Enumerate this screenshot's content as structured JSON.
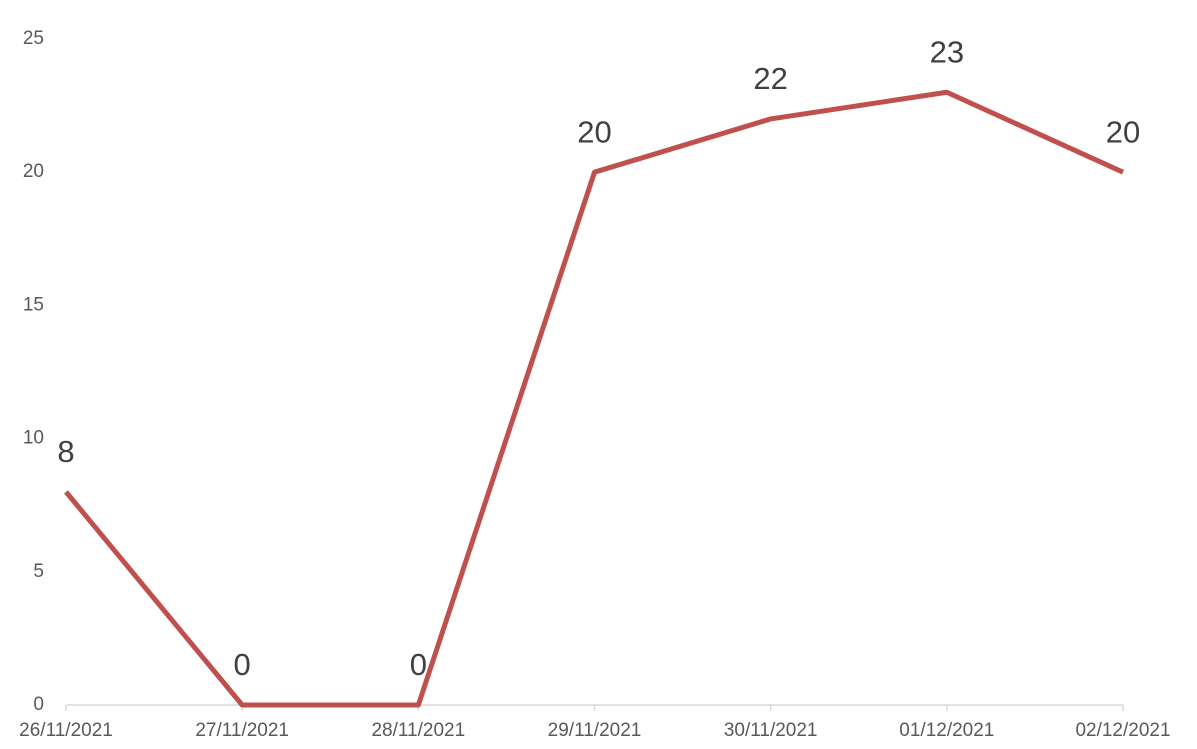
{
  "chart_data": {
    "type": "line",
    "categories": [
      "26/11/2021",
      "27/11/2021",
      "28/11/2021",
      "29/11/2021",
      "30/11/2021",
      "01/12/2021",
      "02/12/2021"
    ],
    "series": [
      {
        "color": "#c0504d",
        "values": [
          8,
          0,
          0,
          20,
          22,
          23,
          20
        ]
      }
    ],
    "ylim": [
      0,
      25
    ],
    "yticks": [
      0,
      5,
      10,
      15,
      20,
      25
    ],
    "grid": false,
    "data_labels": true
  }
}
